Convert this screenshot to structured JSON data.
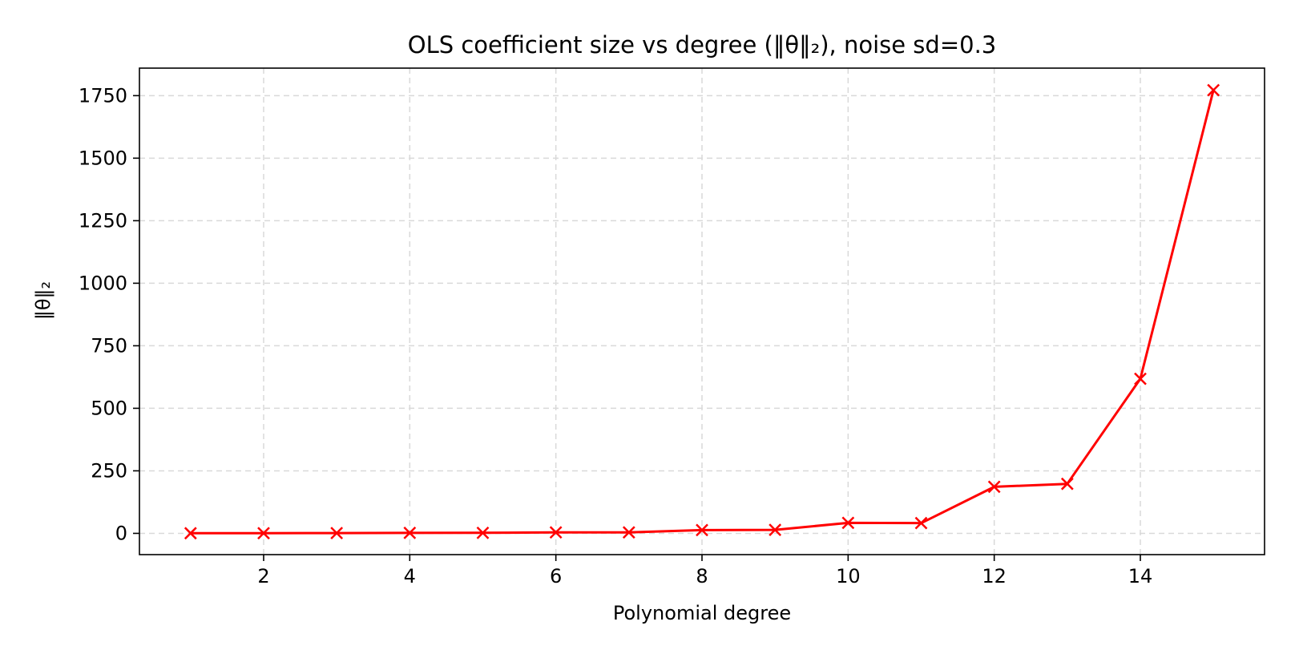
{
  "chart_data": {
    "type": "line",
    "title": "OLS coefficient size vs degree (‖θ‖₂), noise sd=0.3",
    "xlabel": "Polynomial degree",
    "ylabel": "‖θ‖₂",
    "xlim": [
      0.3,
      15.7
    ],
    "ylim": [
      -85,
      1860
    ],
    "xticks": [
      2,
      4,
      6,
      8,
      10,
      12,
      14
    ],
    "yticks": [
      0,
      250,
      500,
      750,
      1000,
      1250,
      1500,
      1750
    ],
    "grid": true,
    "series": [
      {
        "color": "#ff0000",
        "marker": "x",
        "x": [
          1,
          2,
          3,
          4,
          5,
          6,
          7,
          8,
          9,
          10,
          11,
          12,
          13,
          14,
          15
        ],
        "y": [
          0.5,
          0.8,
          1.2,
          1.8,
          2,
          4,
          4,
          13,
          14,
          42,
          41,
          186,
          198,
          618,
          1772
        ]
      }
    ]
  }
}
